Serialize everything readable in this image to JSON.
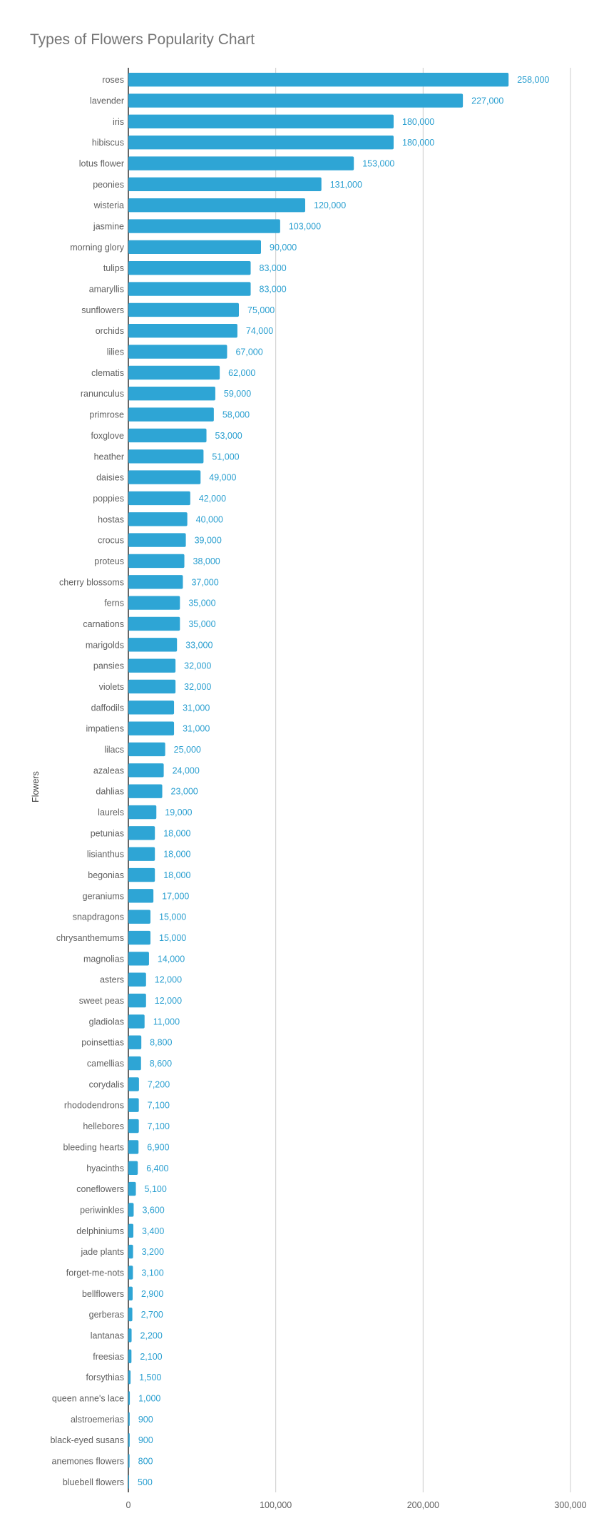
{
  "chart_data": {
    "type": "bar",
    "orientation": "horizontal",
    "title": "Types of Flowers Popularity Chart",
    "xlabel": "",
    "ylabel": "Flowers",
    "xlim": [
      0,
      300000
    ],
    "x_ticks": [
      "0",
      "100,000",
      "200,000",
      "300,000"
    ],
    "x_tick_values": [
      0,
      100000,
      200000,
      300000
    ],
    "grid": "vertical",
    "legend": "none",
    "bar_color": "#2ea5d5",
    "label_color": "#2a9fd0",
    "categories": [
      "roses",
      "lavender",
      "iris",
      "hibiscus",
      "lotus flower",
      "peonies",
      "wisteria",
      "jasmine",
      "morning glory",
      "tulips",
      "amaryllis",
      "sunflowers",
      "orchids",
      "lilies",
      "clematis",
      "ranunculus",
      "primrose",
      "foxglove",
      "heather",
      "daisies",
      "poppies",
      "hostas",
      "crocus",
      "proteus",
      "cherry blossoms",
      "ferns",
      "carnations",
      "marigolds",
      "pansies",
      "violets",
      "daffodils",
      "impatiens",
      "lilacs",
      "azaleas",
      "dahlias",
      "laurels",
      "petunias",
      "lisianthus",
      "begonias",
      "geraniums",
      "snapdragons",
      "chrysanthemums",
      "magnolias",
      "asters",
      "sweet peas",
      "gladiolas",
      "poinsettias",
      "camellias",
      "corydalis",
      "rhododendrons",
      "hellebores",
      "bleeding hearts",
      "hyacinths",
      "coneflowers",
      "periwinkles",
      "delphiniums",
      "jade plants",
      "forget-me-nots",
      "bellflowers",
      "gerberas",
      "lantanas",
      "freesias",
      "forsythias",
      "queen anne's lace",
      "alstroemerias",
      "black-eyed susans",
      "anemones flowers",
      "bluebell flowers"
    ],
    "values": [
      258000,
      227000,
      180000,
      180000,
      153000,
      131000,
      120000,
      103000,
      90000,
      83000,
      83000,
      75000,
      74000,
      67000,
      62000,
      59000,
      58000,
      53000,
      51000,
      49000,
      42000,
      40000,
      39000,
      38000,
      37000,
      35000,
      35000,
      33000,
      32000,
      32000,
      31000,
      31000,
      25000,
      24000,
      23000,
      19000,
      18000,
      18000,
      18000,
      17000,
      15000,
      15000,
      14000,
      12000,
      12000,
      11000,
      8800,
      8600,
      7200,
      7100,
      7100,
      6900,
      6400,
      5100,
      3600,
      3400,
      3200,
      3100,
      2900,
      2700,
      2200,
      2100,
      1500,
      1000,
      900,
      900,
      800,
      500
    ],
    "value_labels": [
      "258,000",
      "227,000",
      "180,000",
      "180,000",
      "153,000",
      "131,000",
      "120,000",
      "103,000",
      "90,000",
      "83,000",
      "83,000",
      "75,000",
      "74,000",
      "67,000",
      "62,000",
      "59,000",
      "58,000",
      "53,000",
      "51,000",
      "49,000",
      "42,000",
      "40,000",
      "39,000",
      "38,000",
      "37,000",
      "35,000",
      "35,000",
      "33,000",
      "32,000",
      "32,000",
      "31,000",
      "31,000",
      "25,000",
      "24,000",
      "23,000",
      "19,000",
      "18,000",
      "18,000",
      "18,000",
      "17,000",
      "15,000",
      "15,000",
      "14,000",
      "12,000",
      "12,000",
      "11,000",
      "8,800",
      "8,600",
      "7,200",
      "7,100",
      "7,100",
      "6,900",
      "6,400",
      "5,100",
      "3,600",
      "3,400",
      "3,200",
      "3,100",
      "2,900",
      "2,700",
      "2,200",
      "2,100",
      "1,500",
      "1,000",
      "900",
      "900",
      "800",
      "500"
    ]
  }
}
